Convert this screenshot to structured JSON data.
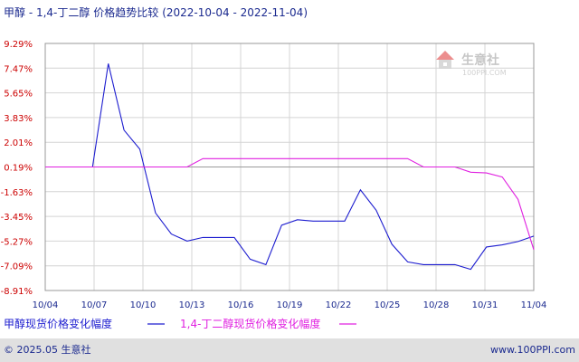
{
  "chart_data": {
    "type": "line",
    "title": "甲醇 - 1,4-丁二醇 价格趋势比较",
    "date_range": "(2022-10-04 - 2022-11-04)",
    "y_ticks": [
      "9.29%",
      "7.47%",
      "5.65%",
      "3.83%",
      "2.01%",
      "0.19%",
      "-1.63%",
      "-3.45%",
      "-5.27%",
      "-7.09%",
      "-8.91%"
    ],
    "x_ticks": [
      "10/04",
      "10/07",
      "10/10",
      "10/13",
      "10/16",
      "10/19",
      "10/22",
      "10/25",
      "10/28",
      "10/31",
      "11/04"
    ],
    "ylim": [
      -8.91,
      9.29
    ],
    "series": [
      {
        "name": "甲醇现货价格变化幅度",
        "color": "#1c1ccf",
        "x": [
          "10/04",
          "10/05",
          "10/06",
          "10/07",
          "10/08",
          "10/09",
          "10/10",
          "10/11",
          "10/12",
          "10/13",
          "10/14",
          "10/15",
          "10/16",
          "10/17",
          "10/18",
          "10/19",
          "10/20",
          "10/21",
          "10/22",
          "10/23",
          "10/24",
          "10/25",
          "10/26",
          "10/27",
          "10/28",
          "10/29",
          "10/30",
          "10/31",
          "11/01",
          "11/02",
          "11/03",
          "11/04"
        ],
        "values": [
          0.19,
          0.19,
          0.19,
          0.19,
          7.8,
          2.9,
          1.5,
          -3.2,
          -4.75,
          -5.27,
          -5.0,
          -5.0,
          -5.0,
          -6.6,
          -7.0,
          -4.1,
          -3.7,
          -3.8,
          -3.8,
          -3.8,
          -1.5,
          -3.0,
          -5.5,
          -6.8,
          -7.0,
          -7.0,
          -7.0,
          -7.35,
          -5.7,
          -5.55,
          -5.3,
          -4.9
        ]
      },
      {
        "name": "1,4-丁二醇现货价格变化幅度",
        "color": "#e020e0",
        "x": [
          "10/04",
          "10/05",
          "10/06",
          "10/07",
          "10/08",
          "10/09",
          "10/10",
          "10/11",
          "10/12",
          "10/13",
          "10/14",
          "10/15",
          "10/16",
          "10/17",
          "10/18",
          "10/19",
          "10/20",
          "10/21",
          "10/22",
          "10/23",
          "10/24",
          "10/25",
          "10/26",
          "10/27",
          "10/28",
          "10/29",
          "10/30",
          "10/31",
          "11/01",
          "11/02",
          "11/03",
          "11/04"
        ],
        "values": [
          0.19,
          0.19,
          0.19,
          0.19,
          0.19,
          0.19,
          0.19,
          0.19,
          0.19,
          0.19,
          0.8,
          0.8,
          0.8,
          0.8,
          0.8,
          0.8,
          0.8,
          0.8,
          0.8,
          0.8,
          0.8,
          0.8,
          0.8,
          0.8,
          0.19,
          0.19,
          0.19,
          -0.2,
          -0.25,
          -0.55,
          -2.2,
          -5.9
        ]
      }
    ]
  },
  "watermark": {
    "brand": "生意社",
    "url": "100PPI.COM"
  },
  "footer": {
    "copyright": "© 2025.05 生意社",
    "site": "www.100PPI.com"
  },
  "colors": {
    "title": "#1b2a8f",
    "ytick": "#cc0000",
    "grid": "#d0d0d0",
    "footer_bg": "#e0e0e0"
  }
}
